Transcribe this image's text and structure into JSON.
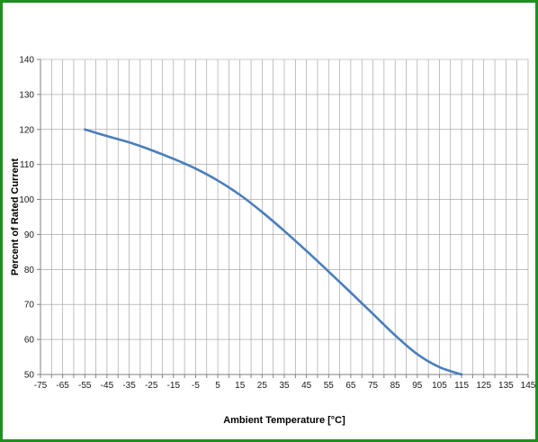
{
  "chart_data": {
    "type": "line",
    "title": "",
    "xlabel": "Ambient Temperature [°C]",
    "ylabel": "Percent of Rated Current",
    "xlim": [
      -75,
      145
    ],
    "ylim": [
      50,
      140
    ],
    "x_ticks": [
      -75,
      -65,
      -55,
      -45,
      -35,
      -25,
      -15,
      -5,
      5,
      15,
      25,
      35,
      45,
      55,
      65,
      75,
      85,
      95,
      105,
      115,
      125,
      135,
      145
    ],
    "y_ticks": [
      50,
      60,
      70,
      80,
      90,
      100,
      110,
      120,
      130,
      140
    ],
    "minor_x_step": 5,
    "grid": true,
    "legend": "none",
    "series": [
      {
        "x": [
          -55,
          -45,
          -35,
          -25,
          -15,
          -5,
          5,
          15,
          25,
          35,
          45,
          55,
          65,
          75,
          85,
          95,
          105,
          115
        ],
        "y": [
          120,
          118.1,
          116.3,
          114.1,
          111.6,
          108.8,
          105.4,
          101.3,
          96.4,
          91.0,
          85.3,
          79.4,
          73.4,
          67.3,
          61.2,
          55.8,
          52.1,
          50
        ],
        "color": "#4a7ebb"
      }
    ],
    "colors": {
      "frame": "#1f8f1f",
      "grid": "#9a9a9a",
      "axis": "#808080",
      "text": "#1a1a1a"
    }
  }
}
